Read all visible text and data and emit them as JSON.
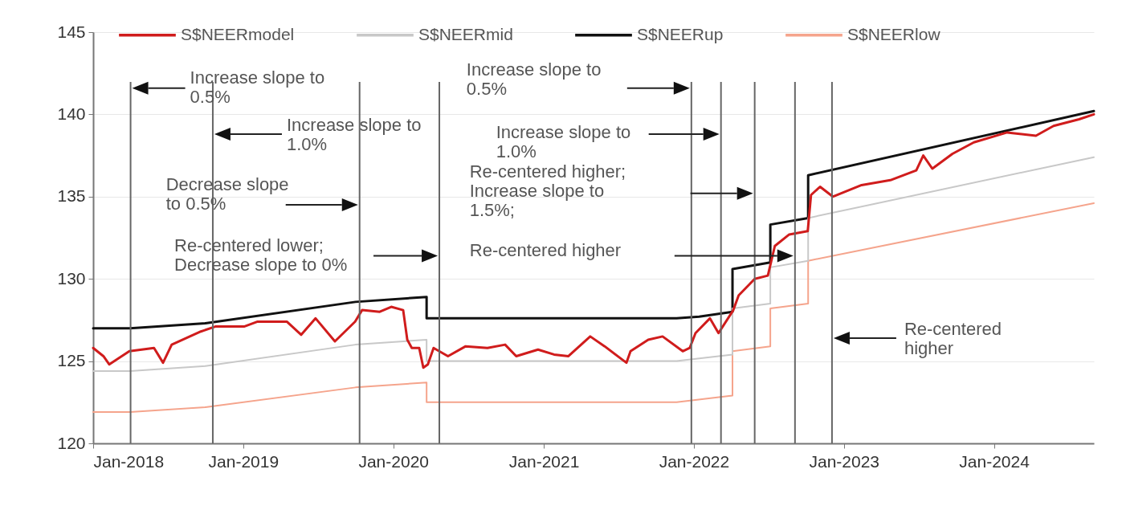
{
  "chart_data": {
    "type": "line",
    "xlim": [
      "2018-01-01",
      "2024-08-31"
    ],
    "xticks": [
      {
        "value": "2018-01",
        "label": "Jan-2018"
      },
      {
        "value": "2019-01",
        "label": "Jan-2019"
      },
      {
        "value": "2020-01",
        "label": "Jan-2020"
      },
      {
        "value": "2021-01",
        "label": "Jan-2021"
      },
      {
        "value": "2022-01",
        "label": "Jan-2022"
      },
      {
        "value": "2023-01",
        "label": "Jan-2023"
      },
      {
        "value": "2024-01",
        "label": "Jan-2024"
      }
    ],
    "ylim": [
      120,
      145
    ],
    "yticks": [
      120,
      125,
      130,
      135,
      140,
      145
    ],
    "grid": "y",
    "legend": "top",
    "series": [
      {
        "name": "S$NEERmodel",
        "color": "#d01c1c",
        "x": [
          "2018-01-01",
          "2018-01-26",
          "2018-02-09",
          "2018-03-30",
          "2018-05-29",
          "2018-06-20",
          "2018-07-11",
          "2018-09-20",
          "2018-10-25",
          "2019-01-03",
          "2019-02-05",
          "2019-04-17",
          "2019-05-22",
          "2019-06-26",
          "2019-08-12",
          "2019-09-30",
          "2019-10-17",
          "2019-11-29",
          "2019-12-27",
          "2020-01-25",
          "2020-02-04",
          "2020-02-15",
          "2020-03-04",
          "2020-03-14",
          "2020-03-25",
          "2020-04-08",
          "2020-05-13",
          "2020-06-25",
          "2020-08-17",
          "2020-09-29",
          "2020-10-26",
          "2020-12-18",
          "2021-01-26",
          "2021-03-02",
          "2021-04-24",
          "2021-05-29",
          "2021-07-21",
          "2021-07-31",
          "2021-09-12",
          "2021-10-17",
          "2021-12-05",
          "2021-12-22",
          "2022-01-05",
          "2022-02-09",
          "2022-03-02",
          "2022-04-07",
          "2022-04-20",
          "2022-05-29",
          "2022-06-30",
          "2022-07-17",
          "2022-08-21",
          "2022-10-05",
          "2022-10-13",
          "2022-11-04",
          "2022-12-05",
          "2023-02-13",
          "2023-04-24",
          "2023-06-26",
          "2023-07-13",
          "2023-08-04",
          "2023-09-22",
          "2023-11-13",
          "2024-02-02",
          "2024-04-12",
          "2024-05-25",
          "2024-07-26",
          "2024-08-31"
        ],
        "values": [
          125.8,
          125.3,
          124.8,
          125.6,
          125.8,
          124.9,
          126.0,
          126.8,
          127.1,
          127.1,
          127.4,
          127.4,
          126.6,
          127.6,
          126.2,
          127.4,
          128.1,
          128.0,
          128.3,
          128.1,
          126.3,
          125.8,
          125.8,
          124.6,
          124.8,
          125.8,
          125.3,
          125.9,
          125.8,
          126.0,
          125.3,
          125.7,
          125.4,
          125.3,
          126.5,
          125.9,
          124.9,
          125.6,
          126.3,
          126.5,
          125.6,
          125.8,
          126.7,
          127.6,
          126.7,
          128.1,
          129.0,
          130.0,
          130.2,
          132.0,
          132.7,
          132.9,
          135.1,
          135.6,
          135.0,
          135.7,
          136.0,
          136.6,
          137.5,
          136.7,
          137.6,
          138.3,
          138.9,
          138.7,
          139.3,
          139.7,
          140.0
        ]
      },
      {
        "name": "S$NEERmid",
        "color": "#c8c8c8",
        "x": [
          "2018-01-01",
          "2018-04-01",
          "2018-10-01",
          "2019-10-01",
          "2020-03-22",
          "2020-03-22",
          "2021-11-20",
          "2022-04-05",
          "2022-04-05",
          "2022-07-06",
          "2022-07-06",
          "2022-10-06",
          "2022-10-06",
          "2024-08-31"
        ],
        "values": [
          124.4,
          124.4,
          124.7,
          126.0,
          126.3,
          125.0,
          125.0,
          125.4,
          128.2,
          128.5,
          130.7,
          131.1,
          133.7,
          137.4
        ]
      },
      {
        "name": "S$NEERup",
        "color": "#111111",
        "x": [
          "2018-01-01",
          "2018-04-01",
          "2018-10-01",
          "2019-10-01",
          "2020-03-22",
          "2020-03-22",
          "2021-11-20",
          "2022-01-14",
          "2022-04-05",
          "2022-04-05",
          "2022-07-06",
          "2022-07-06",
          "2022-10-06",
          "2022-10-06",
          "2024-08-31"
        ],
        "values": [
          127.0,
          127.0,
          127.3,
          128.6,
          128.9,
          127.6,
          127.6,
          127.7,
          128.0,
          130.6,
          131.0,
          133.3,
          133.7,
          136.3,
          140.2
        ]
      },
      {
        "name": "S$NEERlow",
        "color": "#f5a48c",
        "x": [
          "2018-01-01",
          "2018-04-01",
          "2018-10-01",
          "2019-10-01",
          "2020-03-22",
          "2020-03-22",
          "2021-11-20",
          "2022-04-05",
          "2022-04-05",
          "2022-07-06",
          "2022-07-06",
          "2022-10-06",
          "2022-10-06",
          "2024-08-31"
        ],
        "values": [
          121.9,
          121.9,
          122.2,
          123.4,
          123.7,
          122.5,
          122.5,
          122.9,
          125.6,
          125.9,
          128.2,
          128.5,
          131.1,
          134.6
        ]
      }
    ],
    "ref_lines": [
      {
        "axis": "x",
        "value": "2018-04-02",
        "color": "#666666"
      },
      {
        "axis": "x",
        "value": "2018-10-19",
        "color": "#666666"
      },
      {
        "axis": "x",
        "value": "2019-10-11",
        "color": "#666666"
      },
      {
        "axis": "x",
        "value": "2020-04-22",
        "color": "#666666"
      },
      {
        "axis": "x",
        "value": "2021-12-26",
        "color": "#666666"
      },
      {
        "axis": "x",
        "value": "2022-03-08",
        "color": "#666666"
      },
      {
        "axis": "x",
        "value": "2022-05-29",
        "color": "#666666"
      },
      {
        "axis": "x",
        "value": "2022-09-04",
        "color": "#666666"
      },
      {
        "axis": "x",
        "value": "2022-12-03",
        "color": "#666666"
      }
    ],
    "annotations": [
      "Increase slope to 0.5%",
      "Increase slope to 1.0%",
      "Decrease slope to 0.5%",
      "Re-centered lower; Decrease slope to 0%",
      "Increase slope to 0.5%",
      "Increase slope to 1.0%",
      "Re-centered higher; Increase slope to 1.5%;",
      "Re-centered higher",
      "Re-centered higher"
    ]
  }
}
